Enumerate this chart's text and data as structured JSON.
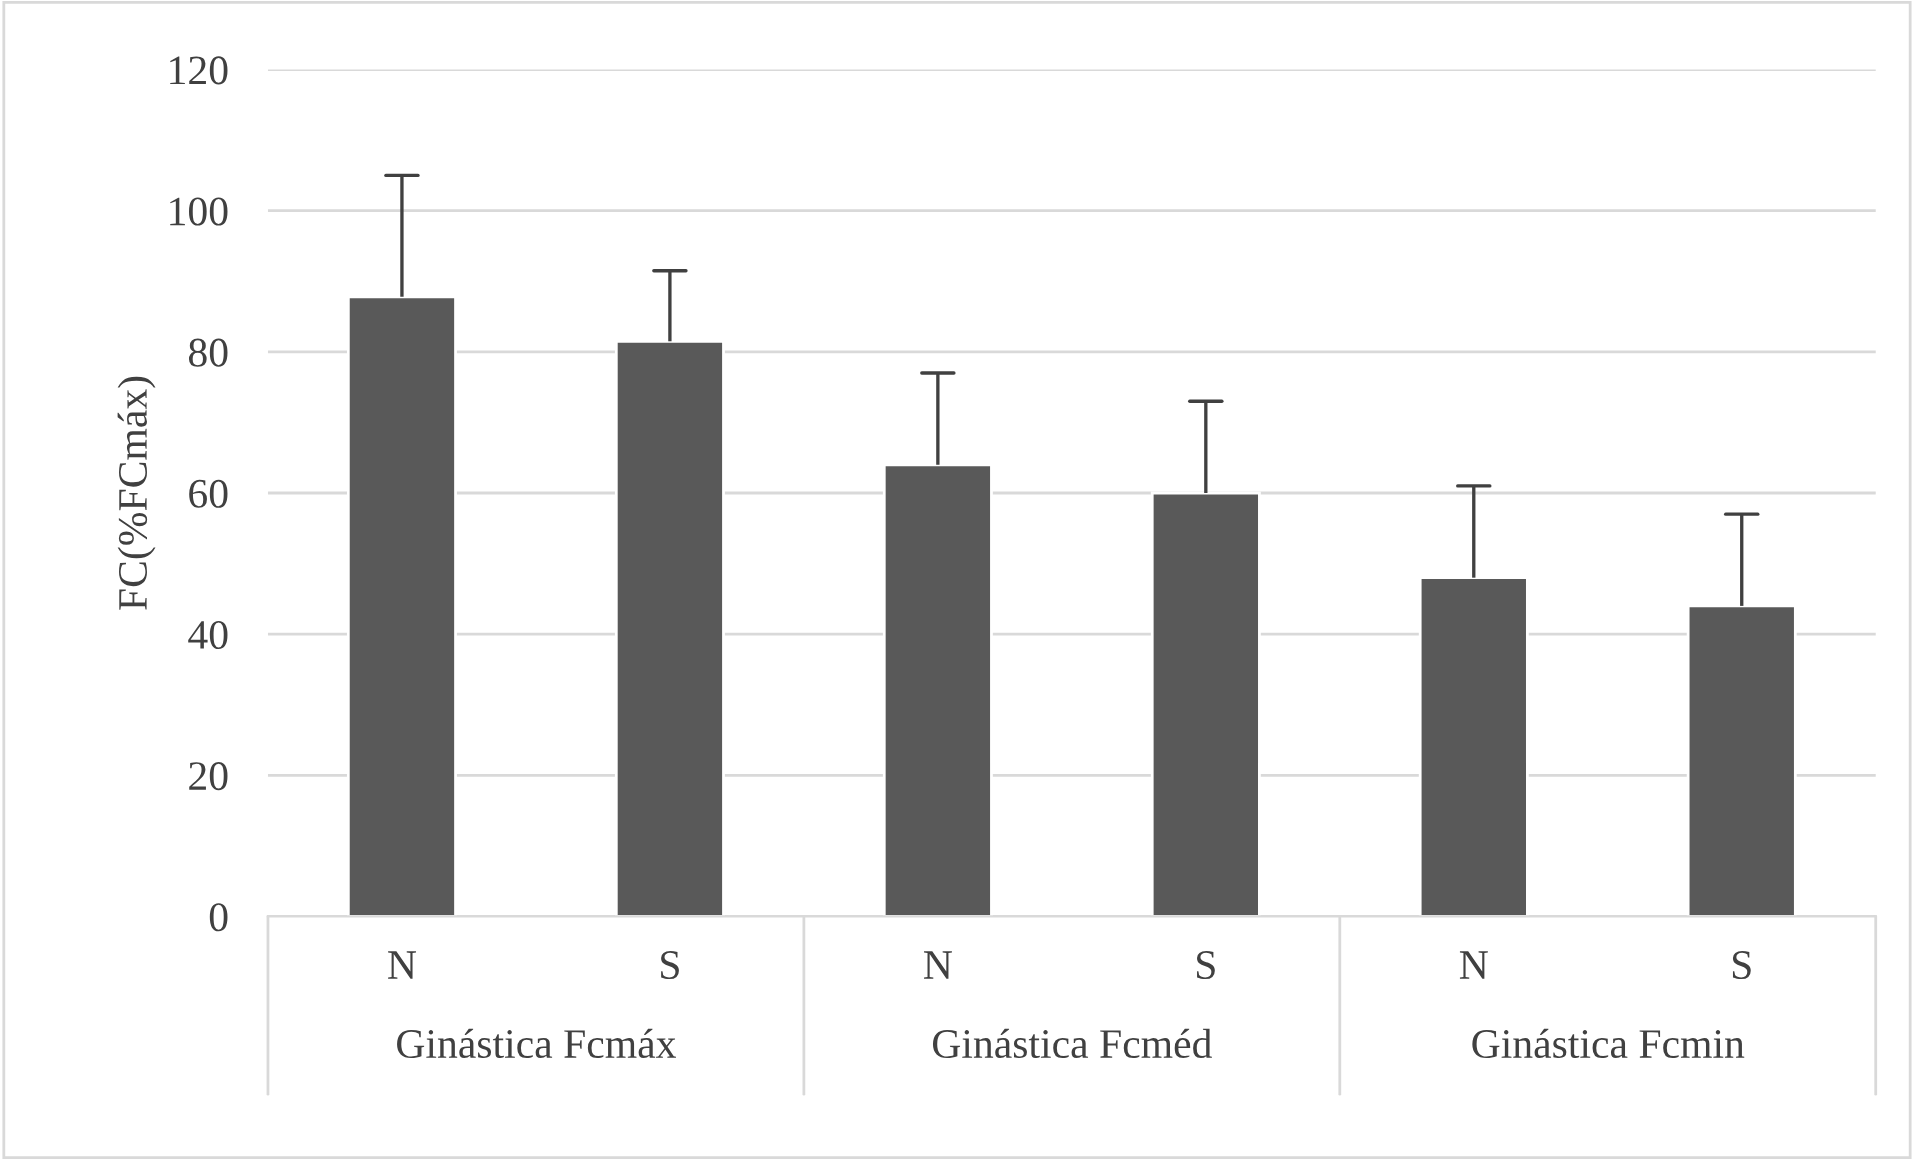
{
  "chart_data": {
    "type": "bar",
    "ylabel": "FC(%FCmáx)",
    "categories": [
      "N",
      "S",
      "N",
      "S",
      "N",
      "S"
    ],
    "values": [
      87.8,
      81.5,
      64,
      60,
      48,
      44
    ],
    "errors": [
      [
        87.8,
        105
      ],
      [
        81.5,
        91.5
      ],
      [
        64,
        77
      ],
      [
        60,
        73
      ],
      [
        48,
        61
      ],
      [
        44,
        57
      ]
    ],
    "color": "#595959",
    "annotations": [
      "Ginástica Fcmáx",
      "Ginástica Fcméd",
      "Ginástica Fcmin"
    ],
    "ylim": [
      0,
      120
    ],
    "yticks": [
      0,
      20,
      40,
      60,
      80,
      100,
      120
    ],
    "grid": "y"
  }
}
